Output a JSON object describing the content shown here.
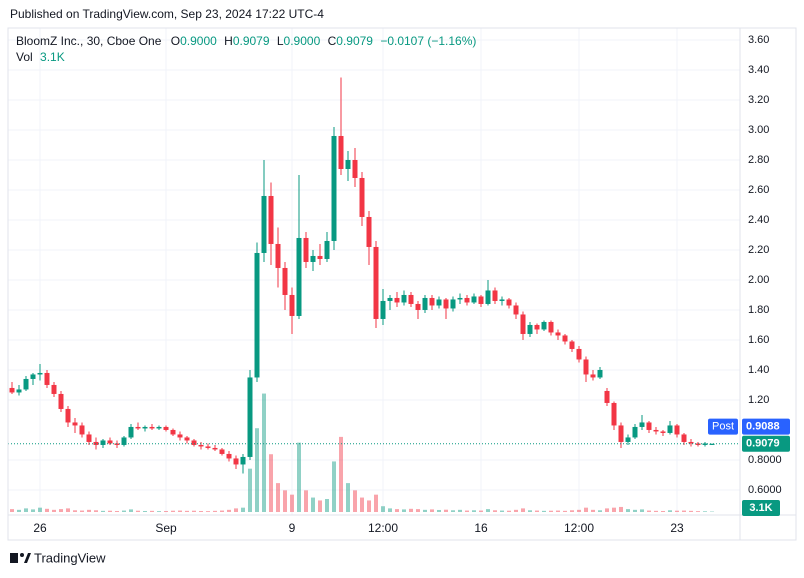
{
  "published": "Published on TradingView.com, Sep 23, 2024 17:22 UTC-4",
  "footer": "TradingView",
  "chart_data": {
    "type": "candlestick",
    "legend": {
      "name": "BloomZ Inc., 30, Cboe One",
      "o_key": "O",
      "o": "0.9000",
      "h_key": "H",
      "h": "0.9079",
      "l_key": "L",
      "l": "0.9000",
      "c_key": "C",
      "c": "0.9079",
      "change": "−0.0107 (−1.16%)",
      "vol_key": "Vol"
    },
    "up_color": "#089981",
    "down_color": "#f23645",
    "ylim": [
      0.453,
      3.68
    ],
    "yticks": [
      {
        "value": 0.6,
        "label": "0.6000"
      },
      {
        "value": 0.8,
        "label": "0.8000"
      },
      {
        "value": 1.2,
        "label": "1.20"
      },
      {
        "value": 1.4,
        "label": "1.40"
      },
      {
        "value": 1.6,
        "label": "1.60"
      },
      {
        "value": 1.8,
        "label": "1.80"
      },
      {
        "value": 2.0,
        "label": "2.00"
      },
      {
        "value": 2.2,
        "label": "2.20"
      },
      {
        "value": 2.4,
        "label": "2.40"
      },
      {
        "value": 2.6,
        "label": "2.60"
      },
      {
        "value": 2.8,
        "label": "2.80"
      },
      {
        "value": 3.0,
        "label": "3.00"
      },
      {
        "value": 3.2,
        "label": "3.20"
      },
      {
        "value": 3.4,
        "label": "3.40"
      },
      {
        "value": 3.6,
        "label": "3.60"
      }
    ],
    "grid": true,
    "last_price": {
      "value": 0.9079,
      "label": "0.9079"
    },
    "post_price": {
      "name": "Post",
      "value": 0.9088,
      "label": "0.9088"
    },
    "volume_lim": [
      0,
      900000
    ],
    "categories": [
      null,
      null,
      null,
      null,
      "26",
      null,
      null,
      null,
      null,
      null,
      null,
      null,
      null,
      null,
      null,
      null,
      null,
      null,
      null,
      null,
      null,
      null,
      "Sep",
      null,
      null,
      null,
      null,
      null,
      null,
      null,
      null,
      null,
      null,
      null,
      null,
      null,
      null,
      null,
      null,
      null,
      "9",
      null,
      null,
      null,
      null,
      null,
      null,
      null,
      null,
      null,
      null,
      null,
      null,
      "12:00",
      null,
      null,
      null,
      null,
      null,
      null,
      null,
      null,
      null,
      null,
      null,
      null,
      null,
      "16",
      null,
      null,
      null,
      null,
      null,
      null,
      null,
      null,
      null,
      null,
      null,
      null,
      null,
      "12:00",
      null,
      null,
      null,
      null,
      null,
      null,
      null,
      null,
      null,
      null,
      null,
      null,
      null,
      "23",
      null,
      null,
      null,
      null,
      null
    ],
    "open": [
      1.28,
      1.25,
      1.27,
      1.34,
      1.37,
      1.38,
      1.3,
      1.24,
      1.14,
      1.05,
      1.03,
      0.97,
      0.92,
      0.9,
      0.93,
      0.91,
      0.9,
      0.95,
      1.02,
      1.01,
      1.02,
      1.01,
      1.02,
      1.0,
      0.97,
      0.95,
      0.93,
      0.9,
      0.89,
      0.88,
      0.87,
      0.84,
      0.81,
      0.77,
      0.82,
      1.35,
      2.18,
      2.56,
      2.24,
      2.08,
      1.9,
      1.76,
      2.28,
      2.12,
      2.16,
      2.14,
      2.26,
      2.96,
      2.74,
      2.8,
      2.68,
      2.42,
      2.22,
      1.74,
      1.86,
      1.88,
      1.85,
      1.9,
      1.84,
      1.8,
      1.88,
      1.83,
      1.87,
      1.81,
      1.87,
      1.88,
      1.85,
      1.89,
      1.84,
      1.93,
      1.86,
      1.87,
      1.83,
      1.77,
      1.64,
      1.7,
      1.67,
      1.72,
      1.65,
      1.63,
      1.59,
      1.54,
      1.47,
      1.37,
      1.35,
      1.26,
      1.18,
      1.03,
      0.92,
      0.95,
      1.02,
      1.05,
      1.0,
      0.99,
      0.98,
      1.03,
      0.97,
      0.92,
      0.91,
      0.9,
      0.9
    ],
    "high": [
      1.32,
      1.3,
      1.36,
      1.38,
      1.44,
      1.4,
      1.32,
      1.26,
      1.16,
      1.08,
      1.05,
      0.99,
      0.95,
      0.94,
      0.95,
      0.93,
      0.96,
      1.04,
      1.05,
      1.03,
      1.04,
      1.03,
      1.03,
      1.01,
      0.99,
      0.96,
      0.94,
      0.92,
      0.91,
      0.9,
      0.88,
      0.86,
      0.83,
      0.84,
      1.4,
      2.25,
      2.8,
      2.65,
      2.35,
      2.12,
      1.95,
      2.7,
      2.32,
      2.2,
      2.24,
      2.32,
      3.02,
      3.35,
      2.86,
      2.88,
      2.72,
      2.46,
      2.26,
      1.94,
      1.9,
      1.92,
      1.93,
      1.92,
      1.86,
      1.9,
      1.9,
      1.89,
      1.88,
      1.89,
      1.91,
      1.9,
      1.91,
      1.9,
      2.0,
      1.95,
      1.89,
      1.88,
      1.85,
      1.79,
      1.72,
      1.71,
      1.73,
      1.73,
      1.67,
      1.64,
      1.6,
      1.56,
      1.49,
      1.4,
      1.42,
      1.28,
      1.19,
      1.05,
      0.97,
      1.04,
      1.1,
      1.06,
      1.02,
      1.0,
      1.06,
      1.04,
      0.98,
      0.94,
      0.92,
      0.92,
      0.9079
    ],
    "low": [
      1.24,
      1.23,
      1.26,
      1.3,
      1.33,
      1.28,
      1.22,
      1.12,
      1.02,
      0.98,
      0.95,
      0.9,
      0.87,
      0.88,
      0.9,
      0.88,
      0.89,
      0.94,
      1.0,
      0.99,
      1.0,
      1.0,
      0.99,
      0.96,
      0.93,
      0.91,
      0.89,
      0.87,
      0.87,
      0.86,
      0.83,
      0.79,
      0.74,
      0.71,
      0.8,
      1.32,
      2.12,
      2.1,
      1.95,
      1.8,
      1.64,
      1.74,
      2.08,
      2.06,
      2.1,
      2.12,
      2.2,
      2.7,
      2.66,
      2.62,
      2.36,
      2.1,
      1.68,
      1.7,
      1.8,
      1.82,
      1.83,
      1.82,
      1.74,
      1.78,
      1.8,
      1.81,
      1.74,
      1.79,
      1.84,
      1.83,
      1.84,
      1.82,
      1.83,
      1.84,
      1.83,
      1.81,
      1.74,
      1.6,
      1.62,
      1.64,
      1.66,
      1.63,
      1.6,
      1.57,
      1.52,
      1.45,
      1.32,
      1.33,
      1.34,
      1.16,
      1.0,
      0.88,
      0.9,
      0.94,
      1.0,
      0.98,
      0.97,
      0.96,
      0.97,
      0.95,
      0.9,
      0.89,
      0.89,
      0.89,
      0.9
    ],
    "close": [
      1.25,
      1.27,
      1.34,
      1.37,
      1.38,
      1.3,
      1.24,
      1.14,
      1.05,
      1.03,
      0.97,
      0.92,
      0.9,
      0.93,
      0.91,
      0.9,
      0.95,
      1.02,
      1.01,
      1.02,
      1.01,
      1.02,
      1.0,
      0.97,
      0.95,
      0.93,
      0.9,
      0.89,
      0.88,
      0.87,
      0.84,
      0.81,
      0.77,
      0.82,
      1.35,
      2.18,
      2.56,
      2.24,
      2.08,
      1.9,
      1.76,
      2.28,
      2.12,
      2.16,
      2.14,
      2.26,
      2.96,
      2.74,
      2.8,
      2.68,
      2.42,
      2.22,
      1.74,
      1.86,
      1.88,
      1.85,
      1.9,
      1.84,
      1.8,
      1.88,
      1.83,
      1.87,
      1.81,
      1.87,
      1.88,
      1.85,
      1.89,
      1.84,
      1.93,
      1.86,
      1.87,
      1.83,
      1.77,
      1.64,
      1.7,
      1.67,
      1.72,
      1.65,
      1.63,
      1.59,
      1.54,
      1.47,
      1.37,
      1.35,
      1.4,
      1.18,
      1.03,
      0.92,
      0.95,
      1.02,
      1.05,
      1.0,
      0.99,
      0.98,
      1.03,
      0.97,
      0.92,
      0.91,
      0.9,
      0.91,
      0.9079
    ],
    "volume": [
      20000,
      15000,
      25000,
      18000,
      30000,
      22000,
      15000,
      20000,
      25000,
      12000,
      10000,
      15000,
      12000,
      8000,
      9000,
      7000,
      10000,
      18000,
      9000,
      7000,
      8000,
      6000,
      7000,
      9000,
      10000,
      8000,
      9000,
      7000,
      6000,
      8000,
      10000,
      15000,
      25000,
      30000,
      300000,
      580000,
      820000,
      400000,
      200000,
      150000,
      120000,
      480000,
      150000,
      100000,
      80000,
      90000,
      350000,
      520000,
      200000,
      150000,
      100000,
      80000,
      120000,
      40000,
      25000,
      20000,
      18000,
      22000,
      20000,
      15000,
      18000,
      14000,
      16000,
      12000,
      15000,
      10000,
      12000,
      10000,
      20000,
      12000,
      10000,
      9000,
      15000,
      25000,
      12000,
      10000,
      8000,
      9000,
      10000,
      8000,
      12000,
      15000,
      30000,
      15000,
      12000,
      25000,
      30000,
      35000,
      20000,
      15000,
      18000,
      10000,
      8000,
      7000,
      12000,
      9000,
      10000,
      8000,
      6000,
      5000,
      3100
    ],
    "volume_labels": [
      null,
      null,
      null,
      null,
      null,
      null,
      null,
      null,
      null,
      null,
      null,
      null,
      null,
      null,
      null,
      null,
      null,
      null,
      null,
      null,
      null,
      null,
      null,
      null,
      null,
      null,
      null,
      null,
      null,
      null,
      null,
      null,
      null,
      null,
      null,
      null,
      null,
      null,
      null,
      null,
      null,
      null,
      null,
      null,
      null,
      null,
      null,
      null,
      null,
      null,
      null,
      null,
      null,
      null,
      null,
      null,
      null,
      null,
      null,
      null,
      null,
      null,
      null,
      null,
      null,
      null,
      null,
      null,
      null,
      null,
      null,
      null,
      null,
      null,
      null,
      null,
      null,
      null,
      null,
      null,
      null,
      null,
      null,
      null,
      null,
      null,
      null,
      null,
      null,
      null,
      null,
      null,
      null,
      null,
      null,
      null,
      null,
      null,
      null,
      null,
      "3.1K"
    ]
  }
}
